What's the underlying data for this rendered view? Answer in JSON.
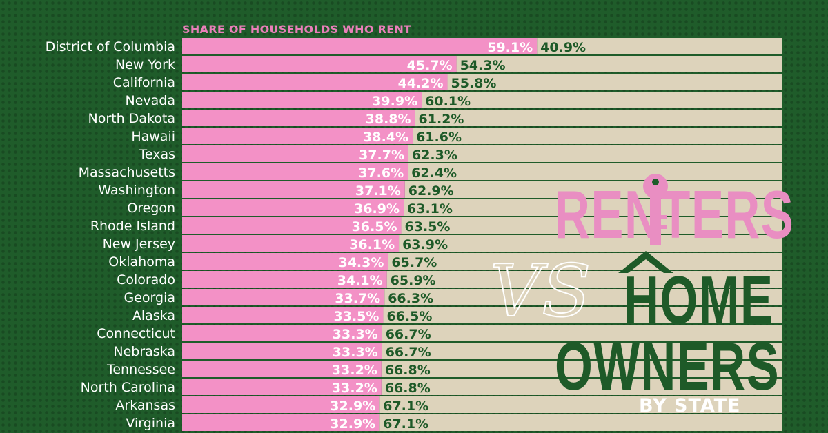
{
  "colors": {
    "background": "#1f5c2a",
    "renters": "#f391c6",
    "owners": "#ddd3bb",
    "subtitle": "#e97fb9",
    "owners_text": "#1e5a28"
  },
  "title": {
    "renters": "RENTERS",
    "vs": "VS",
    "home": "HOME",
    "owners": "OWNERS",
    "by_state": "BY STATE"
  },
  "chart_data": {
    "type": "bar",
    "subtitle": "SHARE OF HOUSEHOLDS WHO RENT",
    "stacked": true,
    "horizontal": true,
    "xlim": [
      0,
      100
    ],
    "categories": [
      "District of Columbia",
      "New York",
      "California",
      "Nevada",
      "North Dakota",
      "Hawaii",
      "Texas",
      "Massachusetts",
      "Washington",
      "Oregon",
      "Rhode Island",
      "New Jersey",
      "Oklahoma",
      "Colorado",
      "Georgia",
      "Alaska",
      "Connecticut",
      "Nebraska",
      "Tennessee",
      "North Carolina",
      "Arkansas",
      "Virginia"
    ],
    "series": [
      {
        "values": [
          59.1,
          45.7,
          44.2,
          39.9,
          38.8,
          38.4,
          37.7,
          37.6,
          37.1,
          36.9,
          36.5,
          36.1,
          34.3,
          34.1,
          33.7,
          33.5,
          33.3,
          33.3,
          33.2,
          33.2,
          32.9,
          32.9
        ],
        "labels": [
          "59.1%",
          "45.7%",
          "44.2%",
          "39.9%",
          "38.8%",
          "38.4%",
          "37.7%",
          "37.6%",
          "37.1%",
          "36.9%",
          "36.5%",
          "36.1%",
          "34.3%",
          "34.1%",
          "33.7%",
          "33.5%",
          "33.3%",
          "33.3%",
          "33.2%",
          "33.2%",
          "32.9%",
          "32.9%"
        ]
      },
      {
        "values": [
          40.9,
          54.3,
          55.8,
          60.1,
          61.2,
          61.6,
          62.3,
          62.4,
          62.9,
          63.1,
          63.5,
          63.9,
          65.7,
          65.9,
          66.3,
          66.5,
          66.7,
          66.7,
          66.8,
          66.8,
          67.1,
          67.1
        ],
        "labels": [
          "40.9%",
          "54.3%",
          "55.8%",
          "60.1%",
          "61.2%",
          "61.6%",
          "62.3%",
          "62.4%",
          "62.9%",
          "63.1%",
          "63.5%",
          "63.9%",
          "65.7%",
          "65.9%",
          "66.3%",
          "66.5%",
          "66.7%",
          "66.7%",
          "66.8%",
          "66.8%",
          "67.1%",
          "67.1%"
        ]
      }
    ]
  }
}
